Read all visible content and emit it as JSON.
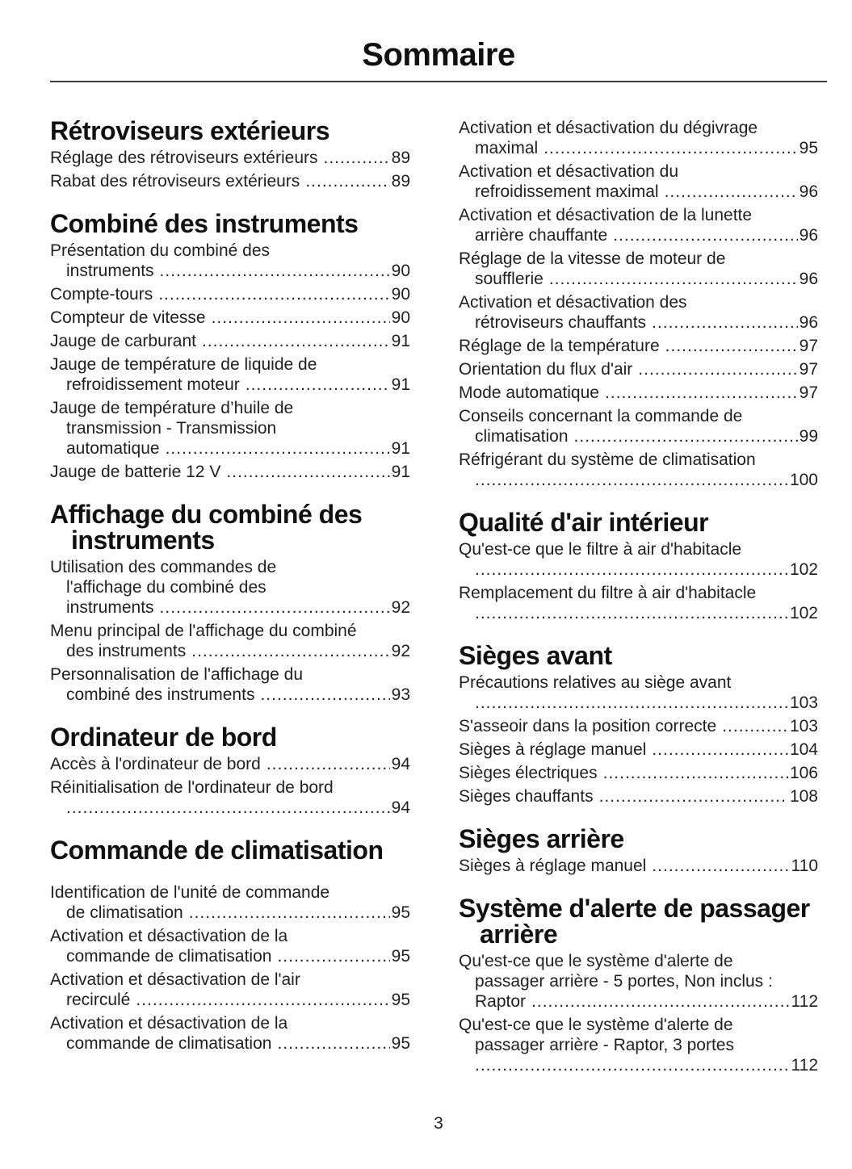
{
  "document": {
    "title": "Sommaire",
    "page_number": "3"
  },
  "colors": {
    "text": "#1f1f1f",
    "heading": "#111111",
    "rule": "#3d3d3d",
    "background": "#ffffff"
  },
  "toc": {
    "columns": [
      {
        "sections": [
          {
            "heading_lines": [
              "Rétroviseurs extérieurs"
            ],
            "entries": [
              {
                "lines": [
                  "Réglage des rétroviseurs extérieurs"
                ],
                "page": "89"
              },
              {
                "lines": [
                  "Rabat des rétroviseurs extérieurs"
                ],
                "page": "89"
              }
            ]
          },
          {
            "heading_lines": [
              "Combiné des instruments"
            ],
            "entries": [
              {
                "lines": [
                  "Présentation du combiné des",
                  "instruments"
                ],
                "page": "90"
              },
              {
                "lines": [
                  "Compte-tours"
                ],
                "page": "90"
              },
              {
                "lines": [
                  "Compteur de vitesse"
                ],
                "page": "90"
              },
              {
                "lines": [
                  "Jauge de carburant"
                ],
                "page": "91"
              },
              {
                "lines": [
                  "Jauge de température de liquide de",
                  "refroidissement moteur"
                ],
                "page": "91"
              },
              {
                "lines": [
                  "Jauge de température d’huile de",
                  "transmission - Transmission",
                  "automatique"
                ],
                "page": "91"
              },
              {
                "lines": [
                  "Jauge de batterie 12 V"
                ],
                "page": "91"
              }
            ]
          },
          {
            "heading_lines": [
              "Affichage du combiné des",
              "instruments"
            ],
            "entries": [
              {
                "lines": [
                  "Utilisation des commandes de",
                  "l'affichage du combiné des",
                  "instruments"
                ],
                "page": "92"
              },
              {
                "lines": [
                  "Menu principal de l'affichage du combiné",
                  "des instruments"
                ],
                "page": "92"
              },
              {
                "lines": [
                  "Personnalisation de l'affichage du",
                  "combiné des instruments"
                ],
                "page": "93"
              }
            ]
          },
          {
            "heading_lines": [
              "Ordinateur de bord"
            ],
            "entries": [
              {
                "lines": [
                  "Accès à l'ordinateur de bord"
                ],
                "page": "94"
              },
              {
                "lines": [
                  "Réinitialisation de l'ordinateur de bord",
                  ""
                ],
                "page": "94"
              }
            ]
          },
          {
            "heading_lines": [
              "Commande de climatisation"
            ],
            "extra_heading_gap": true,
            "entries": [
              {
                "lines": [
                  "Identification de l'unité de commande",
                  "de climatisation"
                ],
                "page": "95"
              },
              {
                "lines": [
                  "Activation et désactivation de la",
                  "commande de climatisation"
                ],
                "page": "95"
              },
              {
                "lines": [
                  "Activation et désactivation de l'air",
                  "recirculé"
                ],
                "page": "95"
              },
              {
                "lines": [
                  "Activation et désactivation de la",
                  "commande de climatisation"
                ],
                "page": "95"
              }
            ]
          }
        ]
      },
      {
        "sections": [
          {
            "heading_lines": [],
            "entries": [
              {
                "lines": [
                  "Activation et désactivation du dégivrage",
                  "maximal"
                ],
                "page": "95"
              },
              {
                "lines": [
                  "Activation et désactivation du",
                  "refroidissement maximal"
                ],
                "page": "96"
              },
              {
                "lines": [
                  "Activation et désactivation de la lunette",
                  "arrière chauffante"
                ],
                "page": "96"
              },
              {
                "lines": [
                  "Réglage de la vitesse de moteur de",
                  "soufflerie"
                ],
                "page": "96"
              },
              {
                "lines": [
                  "Activation et désactivation des",
                  "rétroviseurs chauffants"
                ],
                "page": "96"
              },
              {
                "lines": [
                  "Réglage de la température"
                ],
                "page": "97"
              },
              {
                "lines": [
                  "Orientation du flux d'air"
                ],
                "page": "97"
              },
              {
                "lines": [
                  "Mode automatique"
                ],
                "page": "97"
              },
              {
                "lines": [
                  "Conseils concernant la commande de",
                  "climatisation"
                ],
                "page": "99"
              },
              {
                "lines": [
                  "Réfrigérant du système de climatisation",
                  ""
                ],
                "page": "100"
              }
            ]
          },
          {
            "heading_lines": [
              "Qualité d'air intérieur"
            ],
            "entries": [
              {
                "lines": [
                  "Qu'est-ce que le filtre à air d'habitacle",
                  ""
                ],
                "page": "102"
              },
              {
                "lines": [
                  "Remplacement du filtre à air d'habitacle",
                  ""
                ],
                "page": "102"
              }
            ]
          },
          {
            "heading_lines": [
              "Sièges avant"
            ],
            "entries": [
              {
                "lines": [
                  "Précautions relatives au siège avant",
                  ""
                ],
                "page": "103"
              },
              {
                "lines": [
                  "S'asseoir dans la position correcte"
                ],
                "page": "103"
              },
              {
                "lines": [
                  "Sièges à réglage manuel"
                ],
                "page": "104"
              },
              {
                "lines": [
                  "Sièges électriques"
                ],
                "page": "106"
              },
              {
                "lines": [
                  "Sièges chauffants"
                ],
                "page": "108"
              }
            ]
          },
          {
            "heading_lines": [
              "Sièges arrière"
            ],
            "entries": [
              {
                "lines": [
                  "Sièges à réglage manuel"
                ],
                "page": "110"
              }
            ]
          },
          {
            "heading_lines": [
              "Système d'alerte de passager",
              "arrière"
            ],
            "entries": [
              {
                "lines": [
                  "Qu'est-ce que le système d'alerte de",
                  "passager arrière - 5 portes, Non inclus :",
                  "Raptor"
                ],
                "page": "112"
              },
              {
                "lines": [
                  "Qu'est-ce que le système d'alerte de",
                  "passager arrière - Raptor, 3 portes",
                  ""
                ],
                "page": "112"
              }
            ]
          }
        ]
      }
    ]
  }
}
